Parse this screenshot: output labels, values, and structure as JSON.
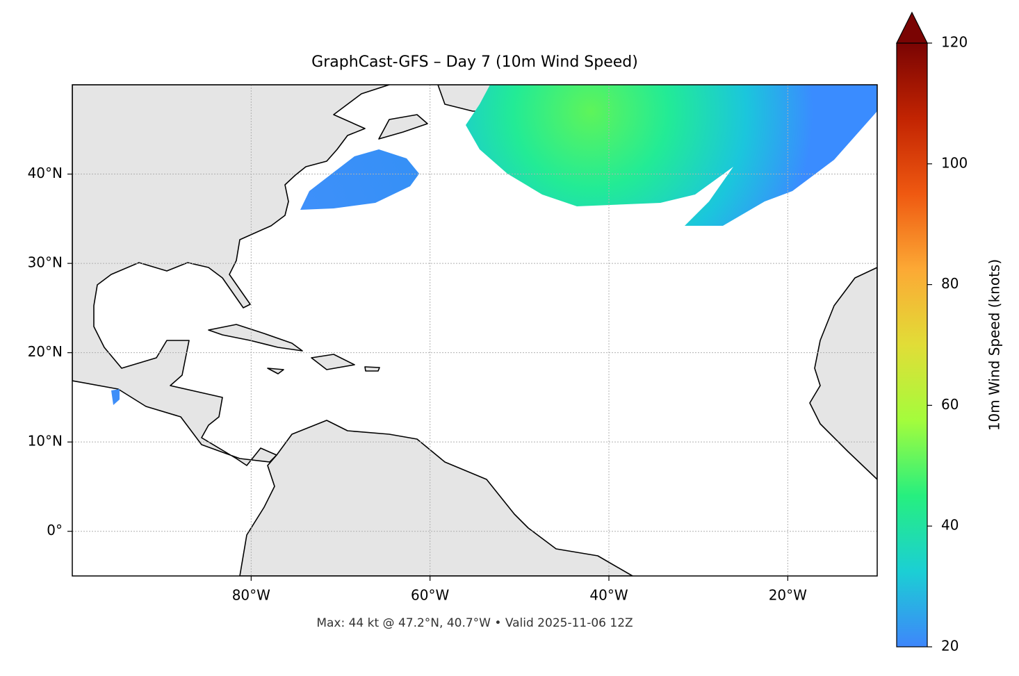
{
  "chart_data": {
    "type": "map",
    "title": "GraphCast-GFS – Day 7 (10m Wind Speed)",
    "annotation": "Max: 44 kt @ 47.2°N, 40.7°W • Valid 2025-11-06 12Z",
    "xlim": [
      -100,
      -10
    ],
    "ylim": [
      -5,
      50
    ],
    "xticks": [
      {
        "value": -80,
        "label": "80°W"
      },
      {
        "value": -60,
        "label": "60°W"
      },
      {
        "value": -40,
        "label": "40°W"
      },
      {
        "value": -20,
        "label": "20°W"
      }
    ],
    "yticks": [
      {
        "value": 0,
        "label": "0°"
      },
      {
        "value": 10,
        "label": "10°N"
      },
      {
        "value": 20,
        "label": "20°N"
      },
      {
        "value": 30,
        "label": "30°N"
      },
      {
        "value": 40,
        "label": "40°N"
      }
    ],
    "grid": true,
    "colorbar": {
      "label": "10m Wind Speed (knots)",
      "lim": [
        20,
        120
      ],
      "ticks": [
        20,
        40,
        60,
        80,
        100,
        120
      ],
      "colors": [
        "#3e86fb",
        "#1bcfd4",
        "#26ef7f",
        "#a4fc3c",
        "#e1dd37",
        "#fca935",
        "#ef5911",
        "#c22402",
        "#7a0403"
      ]
    }
  }
}
